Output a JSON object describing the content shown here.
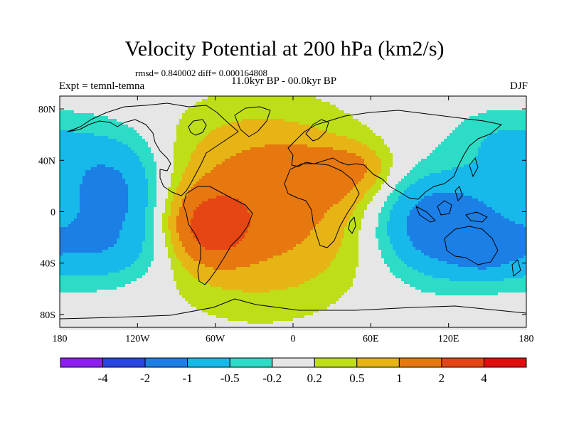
{
  "chart_data": {
    "type": "contour-map",
    "title": "Velocity Potential at 200 hPa (km2/s)",
    "stats_text": "rmsd= 0.840002  diff= 0.000164808",
    "period_text": "11.0kyr BP - 00.0kyr BP",
    "experiment_text": "Expt = temnl-temna",
    "season": "DJF",
    "lon_range": [
      -180,
      180
    ],
    "lat_range": [
      -90,
      90
    ],
    "x_ticks": [
      {
        "lon": -180,
        "label": "180"
      },
      {
        "lon": -120,
        "label": "120W"
      },
      {
        "lon": -60,
        "label": "60W"
      },
      {
        "lon": 0,
        "label": "0"
      },
      {
        "lon": 60,
        "label": "60E"
      },
      {
        "lon": 120,
        "label": "120E"
      },
      {
        "lon": 180,
        "label": "180"
      }
    ],
    "y_ticks": [
      {
        "lat": 80,
        "label": "80N"
      },
      {
        "lat": 40,
        "label": "40N"
      },
      {
        "lat": 0,
        "label": "0"
      },
      {
        "lat": -40,
        "label": "40S"
      },
      {
        "lat": -80,
        "label": "80S"
      }
    ],
    "colorbar": {
      "levels": [
        "-4",
        "-2",
        "-1",
        "-0.5",
        "-0.2",
        "0.2",
        "0.5",
        "1",
        "2",
        "4"
      ],
      "colors": [
        "#8c1ef0",
        "#2a46e0",
        "#1b7fe6",
        "#16b9ea",
        "#2ddcc6",
        "#e6e6e6",
        "#bede18",
        "#e6b414",
        "#e6780f",
        "#e64614",
        "#e00f0f"
      ]
    },
    "fields": [
      {
        "name": "positive-center-west-atlantic",
        "lon": -25,
        "lat": 5,
        "rx": 75,
        "ry": 65,
        "amp": 1.45
      },
      {
        "name": "positive-center-south-america",
        "lon": -62,
        "lat": -12,
        "rx": 26,
        "ry": 25,
        "amp": 2.1
      },
      {
        "name": "positive-center-north-africa",
        "lon": 15,
        "lat": 28,
        "rx": 42,
        "ry": 22,
        "amp": 0.85
      },
      {
        "name": "positive-center-arabia",
        "lon": 45,
        "lat": 35,
        "rx": 25,
        "ry": 16,
        "amp": 0.55
      },
      {
        "name": "negative-center-north-pacific",
        "lon": -142,
        "lat": 28,
        "rx": 46,
        "ry": 36,
        "amp": -1.0
      },
      {
        "name": "negative-center-south-pacific",
        "lon": -150,
        "lat": -28,
        "rx": 55,
        "ry": 28,
        "amp": -0.95
      },
      {
        "name": "negative-center-east-pacific",
        "lon": -135,
        "lat": 5,
        "rx": 35,
        "ry": 25,
        "amp": -0.45
      },
      {
        "name": "negative-center-maritime-continent",
        "lon": 115,
        "lat": -10,
        "rx": 48,
        "ry": 38,
        "amp": -1.6
      },
      {
        "name": "negative-center-australia",
        "lon": 150,
        "lat": -30,
        "rx": 25,
        "ry": 20,
        "amp": -0.6
      },
      {
        "name": "negative-center-north-pacific-east",
        "lon": 160,
        "lat": 55,
        "rx": 40,
        "ry": 25,
        "amp": -0.45
      }
    ]
  }
}
